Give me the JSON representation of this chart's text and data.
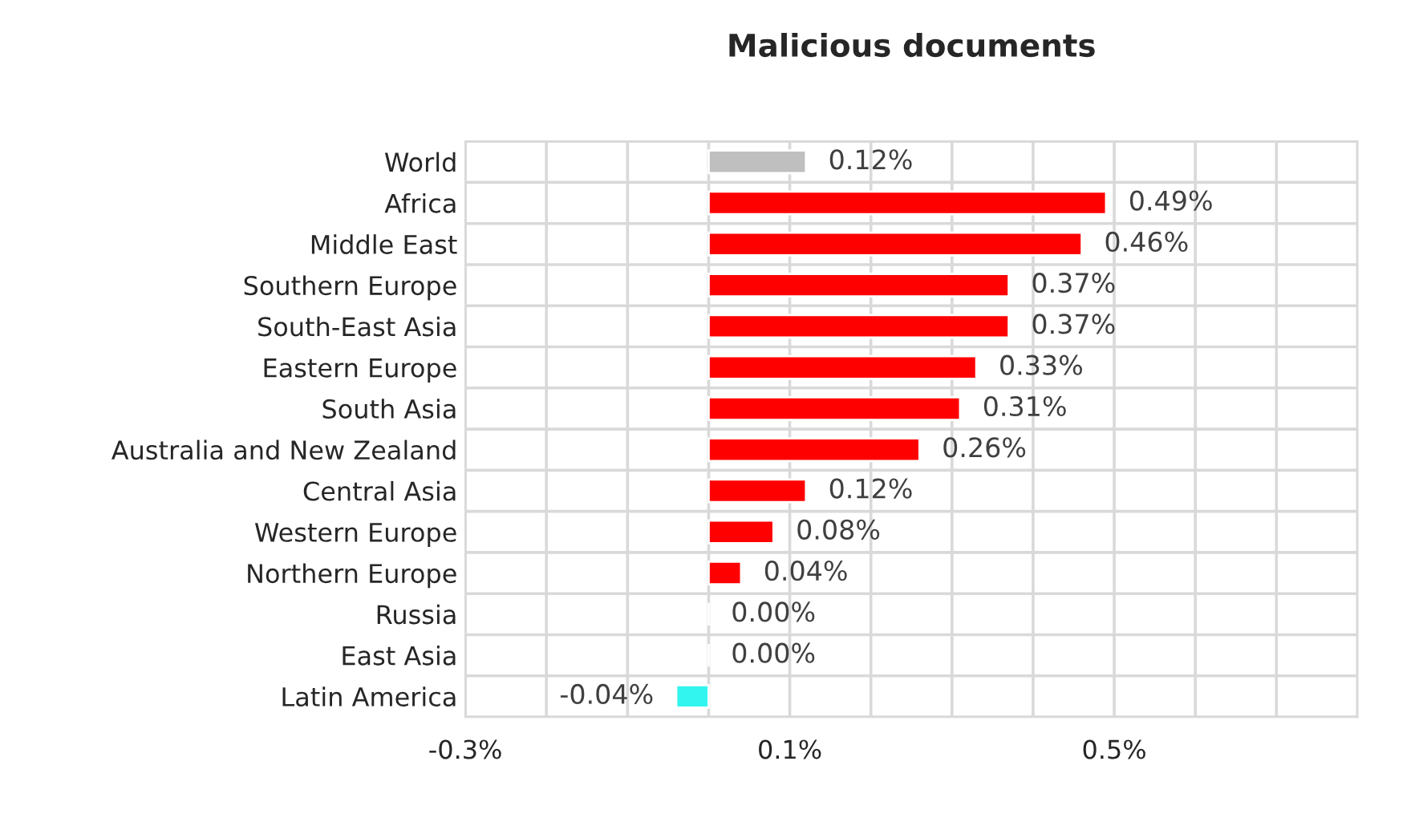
{
  "chart_data": {
    "type": "bar",
    "orientation": "horizontal",
    "title": "Malicious documents",
    "categories": [
      "World",
      "Africa",
      "Middle East",
      "Southern Europe",
      "South-East Asia",
      "Eastern Europe",
      "South Asia",
      "Australia and New Zealand",
      "Central Asia",
      "Western Europe",
      "Northern Europe",
      "Russia",
      "East Asia",
      "Latin America"
    ],
    "values": [
      0.12,
      0.49,
      0.46,
      0.37,
      0.37,
      0.33,
      0.31,
      0.26,
      0.12,
      0.08,
      0.04,
      0.0,
      0.0,
      -0.04
    ],
    "colors": [
      "#bfbfbf",
      "#ff0000",
      "#ff0000",
      "#ff0000",
      "#ff0000",
      "#ff0000",
      "#ff0000",
      "#ff0000",
      "#ff0000",
      "#ff0000",
      "#ff0000",
      null,
      null,
      "#33f5f0"
    ],
    "value_labels": [
      "0.12%",
      "0.49%",
      "0.46%",
      "0.37%",
      "0.37%",
      "0.33%",
      "0.31%",
      "0.26%",
      "0.12%",
      "0.08%",
      "0.04%",
      "0.00%",
      "0.00%",
      "-0.04%"
    ],
    "xlim": [
      -0.3,
      0.8
    ],
    "xticks": [
      {
        "value": -0.3,
        "label": "-0.3%"
      },
      {
        "value": -0.2,
        "label": null
      },
      {
        "value": -0.1,
        "label": null
      },
      {
        "value": 0.0,
        "label": null
      },
      {
        "value": 0.1,
        "label": "0.1%"
      },
      {
        "value": 0.2,
        "label": null
      },
      {
        "value": 0.3,
        "label": null
      },
      {
        "value": 0.4,
        "label": null
      },
      {
        "value": 0.5,
        "label": "0.5%"
      },
      {
        "value": 0.6,
        "label": null
      },
      {
        "value": 0.7,
        "label": null
      },
      {
        "value": 0.8,
        "label": null
      }
    ],
    "grid": true,
    "legend": false
  }
}
